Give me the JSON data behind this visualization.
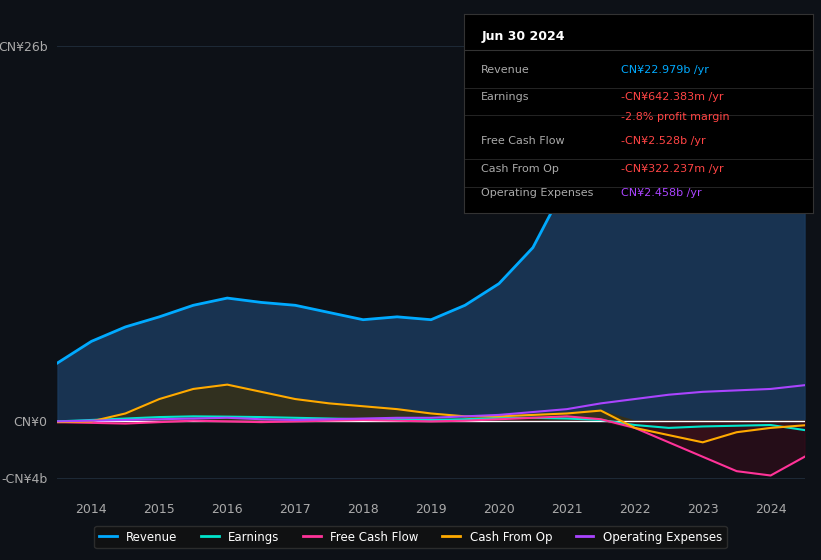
{
  "background_color": "#0d1117",
  "plot_bg_color": "#0d1117",
  "grid_color": "#1e2a38",
  "zero_line_color": "#ffffff",
  "years": [
    2013.5,
    2014,
    2014.5,
    2015,
    2015.5,
    2016,
    2016.5,
    2017,
    2017.5,
    2018,
    2018.5,
    2019,
    2019.5,
    2020,
    2020.5,
    2021,
    2021.5,
    2022,
    2022.5,
    2023,
    2023.5,
    2024,
    2024.5
  ],
  "revenue": [
    4.0,
    5.5,
    6.5,
    7.2,
    8.0,
    8.5,
    8.2,
    8.0,
    7.5,
    7.0,
    7.2,
    7.0,
    8.0,
    9.5,
    12.0,
    16.5,
    19.5,
    18.5,
    17.5,
    19.0,
    22.0,
    25.0,
    23.0
  ],
  "earnings": [
    -0.05,
    0.05,
    0.15,
    0.25,
    0.3,
    0.28,
    0.25,
    0.2,
    0.15,
    0.1,
    0.1,
    0.05,
    0.1,
    0.2,
    0.2,
    0.15,
    0.05,
    -0.3,
    -0.5,
    -0.4,
    -0.35,
    -0.3,
    -0.65
  ],
  "free_cash_flow": [
    -0.1,
    -0.15,
    -0.2,
    -0.1,
    0.0,
    -0.05,
    -0.1,
    -0.05,
    0.0,
    0.05,
    0.0,
    -0.05,
    0.0,
    0.1,
    0.2,
    0.3,
    0.1,
    -0.5,
    -1.5,
    -2.5,
    -3.5,
    -3.8,
    -2.5
  ],
  "cash_from_op": [
    -0.1,
    -0.05,
    0.5,
    1.5,
    2.2,
    2.5,
    2.0,
    1.5,
    1.2,
    1.0,
    0.8,
    0.5,
    0.3,
    0.3,
    0.4,
    0.5,
    0.7,
    -0.5,
    -1.0,
    -1.5,
    -0.8,
    -0.5,
    -0.32
  ],
  "operating_expenses": [
    -0.05,
    0.0,
    0.05,
    0.1,
    0.15,
    0.2,
    0.1,
    0.05,
    0.1,
    0.15,
    0.2,
    0.2,
    0.3,
    0.4,
    0.6,
    0.8,
    1.2,
    1.5,
    1.8,
    2.0,
    2.1,
    2.2,
    2.46
  ],
  "revenue_color": "#00aaff",
  "earnings_color": "#00e5cc",
  "free_cash_flow_color": "#ff3399",
  "cash_from_op_color": "#ffaa00",
  "operating_expenses_color": "#aa44ff",
  "revenue_fill_color": "#1a3a5c",
  "ylim_top": 28,
  "ylim_bottom": -5,
  "y_ticks": [
    26,
    0,
    -4
  ],
  "y_tick_labels": [
    "CN¥26b",
    "CN¥0",
    "-CN¥4b"
  ],
  "x_ticks": [
    2014,
    2015,
    2016,
    2017,
    2018,
    2019,
    2020,
    2021,
    2022,
    2023,
    2024
  ],
  "tooltip_title": "Jun 30 2024",
  "tooltip_rows": [
    {
      "label": "Revenue",
      "value": "CN¥22.979b /yr",
      "value_color": "#00aaff"
    },
    {
      "label": "Earnings",
      "value": "-CN¥642.383m /yr",
      "value_color": "#ff4444"
    },
    {
      "label": "",
      "value": "-2.8% profit margin",
      "value_color": "#ff4444"
    },
    {
      "label": "Free Cash Flow",
      "value": "-CN¥2.528b /yr",
      "value_color": "#ff4444"
    },
    {
      "label": "Cash From Op",
      "value": "-CN¥322.237m /yr",
      "value_color": "#ff4444"
    },
    {
      "label": "Operating Expenses",
      "value": "CN¥2.458b /yr",
      "value_color": "#aa44ff"
    }
  ],
  "legend_entries": [
    {
      "label": "Revenue",
      "color": "#00aaff"
    },
    {
      "label": "Earnings",
      "color": "#00e5cc"
    },
    {
      "label": "Free Cash Flow",
      "color": "#ff3399"
    },
    {
      "label": "Cash From Op",
      "color": "#ffaa00"
    },
    {
      "label": "Operating Expenses",
      "color": "#aa44ff"
    }
  ]
}
